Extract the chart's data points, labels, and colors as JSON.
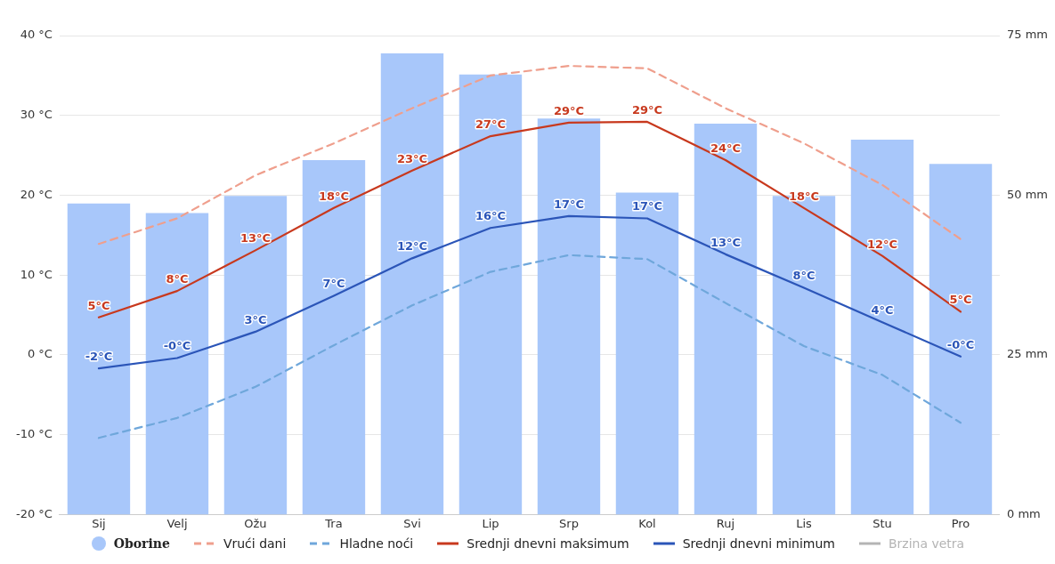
{
  "chart_data": {
    "type": "line",
    "categories": [
      "Sij",
      "Velj",
      "Ožu",
      "Tra",
      "Svi",
      "Lip",
      "Srp",
      "Kol",
      "Ruj",
      "Lis",
      "Stu",
      "Pro"
    ],
    "series": [
      {
        "name": "Oborine",
        "type": "bar",
        "axis": "y2",
        "color": "#a8c7fa",
        "values": [
          48.7,
          47.2,
          49.9,
          55.5,
          72.2,
          68.9,
          62.0,
          50.4,
          61.2,
          49.9,
          58.7,
          54.9
        ]
      },
      {
        "name": "Vrući dani",
        "line_style": "dashed",
        "color": "#ef9f8d",
        "values": [
          13.9,
          17.1,
          22.5,
          26.5,
          30.9,
          35.0,
          36.2,
          35.9,
          30.9,
          26.5,
          21.3,
          14.5
        ]
      },
      {
        "name": "Hladne noći",
        "line_style": "dashed",
        "color": "#6fa7db",
        "values": [
          -10.4,
          -7.9,
          -4.0,
          1.2,
          6.2,
          10.4,
          12.5,
          12.0,
          6.5,
          1.1,
          -2.5,
          -8.5
        ]
      },
      {
        "name": "Srednji dnevni maksimum",
        "line_style": "solid",
        "color": "#c8391e",
        "values": [
          4.7,
          8.0,
          13.1,
          18.4,
          23.1,
          27.4,
          29.1,
          29.2,
          24.4,
          18.4,
          12.4,
          5.4
        ],
        "value_labels": [
          "5°C",
          "8°C",
          "13°C",
          "18°C",
          "23°C",
          "27°C",
          "29°C",
          "29°C",
          "24°C",
          "18°C",
          "12°C",
          "5°C"
        ]
      },
      {
        "name": "Srednji dnevni minimum",
        "line_style": "solid",
        "color": "#2b55b8",
        "values": [
          -1.7,
          -0.4,
          2.9,
          7.4,
          12.1,
          15.9,
          17.4,
          17.1,
          12.6,
          8.4,
          4.1,
          -0.2
        ],
        "value_labels": [
          "-2°C",
          "-0°C",
          "3°C",
          "7°C",
          "12°C",
          "16°C",
          "17°C",
          "17°C",
          "13°C",
          "8°C",
          "4°C",
          "-0°C"
        ]
      },
      {
        "name": "Brzina vetra",
        "line_style": "solid",
        "color": "#b4b4b4",
        "values": [
          null,
          null,
          null,
          null,
          null,
          null,
          null,
          null,
          null,
          null,
          null,
          null
        ]
      }
    ],
    "ylim": [
      -20,
      40
    ],
    "yticks": [
      {
        "value": -20,
        "label": "-20 °C"
      },
      {
        "value": -10,
        "label": "-10 °C"
      },
      {
        "value": 0,
        "label": "0 °C"
      },
      {
        "value": 10,
        "label": "10 °C"
      },
      {
        "value": 20,
        "label": "20 °C"
      },
      {
        "value": 30,
        "label": "30 °C"
      },
      {
        "value": 40,
        "label": "40 °C"
      }
    ],
    "y2lim": [
      0,
      75
    ],
    "y2ticks": [
      {
        "value": 0,
        "label": "0 mm"
      },
      {
        "value": 25,
        "label": "25 mm"
      },
      {
        "value": 50,
        "label": "50 mm"
      },
      {
        "value": 75,
        "label": "75 mm"
      }
    ],
    "grid": "y",
    "legend": "bottom",
    "marker": "none"
  }
}
